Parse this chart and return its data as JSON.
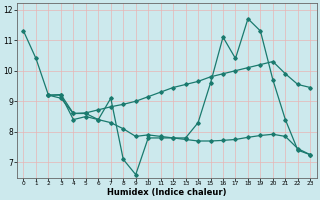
{
  "xlabel": "Humidex (Indice chaleur)",
  "bg_color": "#cce9ed",
  "line_color": "#1a7a6e",
  "grid_color": "#e8b4b4",
  "series1_x": [
    0,
    1,
    2,
    3,
    4,
    5,
    6,
    7,
    8,
    9,
    10,
    11,
    12,
    13,
    14,
    15,
    16,
    17,
    18,
    19,
    20,
    21,
    22,
    23
  ],
  "series1_y": [
    11.3,
    10.4,
    9.2,
    9.2,
    8.4,
    8.5,
    8.4,
    9.1,
    7.1,
    6.6,
    7.8,
    7.8,
    7.8,
    7.8,
    8.3,
    9.6,
    11.1,
    10.4,
    11.7,
    11.3,
    9.7,
    8.4,
    7.4,
    7.25
  ],
  "series2_x": [
    2,
    3,
    4,
    5,
    6,
    7,
    8,
    9,
    10,
    11,
    12,
    13,
    14,
    15,
    16,
    17,
    18,
    19,
    20,
    21,
    22,
    23
  ],
  "series2_y": [
    9.2,
    9.1,
    8.6,
    8.6,
    8.4,
    8.3,
    8.1,
    7.85,
    7.9,
    7.85,
    7.8,
    7.75,
    7.7,
    7.7,
    7.72,
    7.75,
    7.82,
    7.88,
    7.92,
    7.85,
    7.45,
    7.25
  ],
  "series3_x": [
    2,
    3,
    4,
    5,
    6,
    7,
    8,
    9,
    10,
    11,
    12,
    13,
    14,
    15,
    16,
    17,
    18,
    19,
    20,
    21,
    22,
    23
  ],
  "series3_y": [
    9.2,
    9.22,
    8.6,
    8.62,
    8.72,
    8.82,
    8.9,
    9.0,
    9.15,
    9.3,
    9.45,
    9.55,
    9.65,
    9.8,
    9.9,
    10.0,
    10.1,
    10.2,
    10.3,
    9.9,
    9.55,
    9.45
  ],
  "xlim": [
    -0.5,
    23.5
  ],
  "ylim": [
    6.5,
    12.2
  ],
  "yticks": [
    7,
    8,
    9,
    10,
    11,
    12
  ],
  "xticks": [
    0,
    1,
    2,
    3,
    4,
    5,
    6,
    7,
    8,
    9,
    10,
    11,
    12,
    13,
    14,
    15,
    16,
    17,
    18,
    19,
    20,
    21,
    22,
    23
  ],
  "marker": "D",
  "markersize": 1.8,
  "linewidth": 0.9
}
